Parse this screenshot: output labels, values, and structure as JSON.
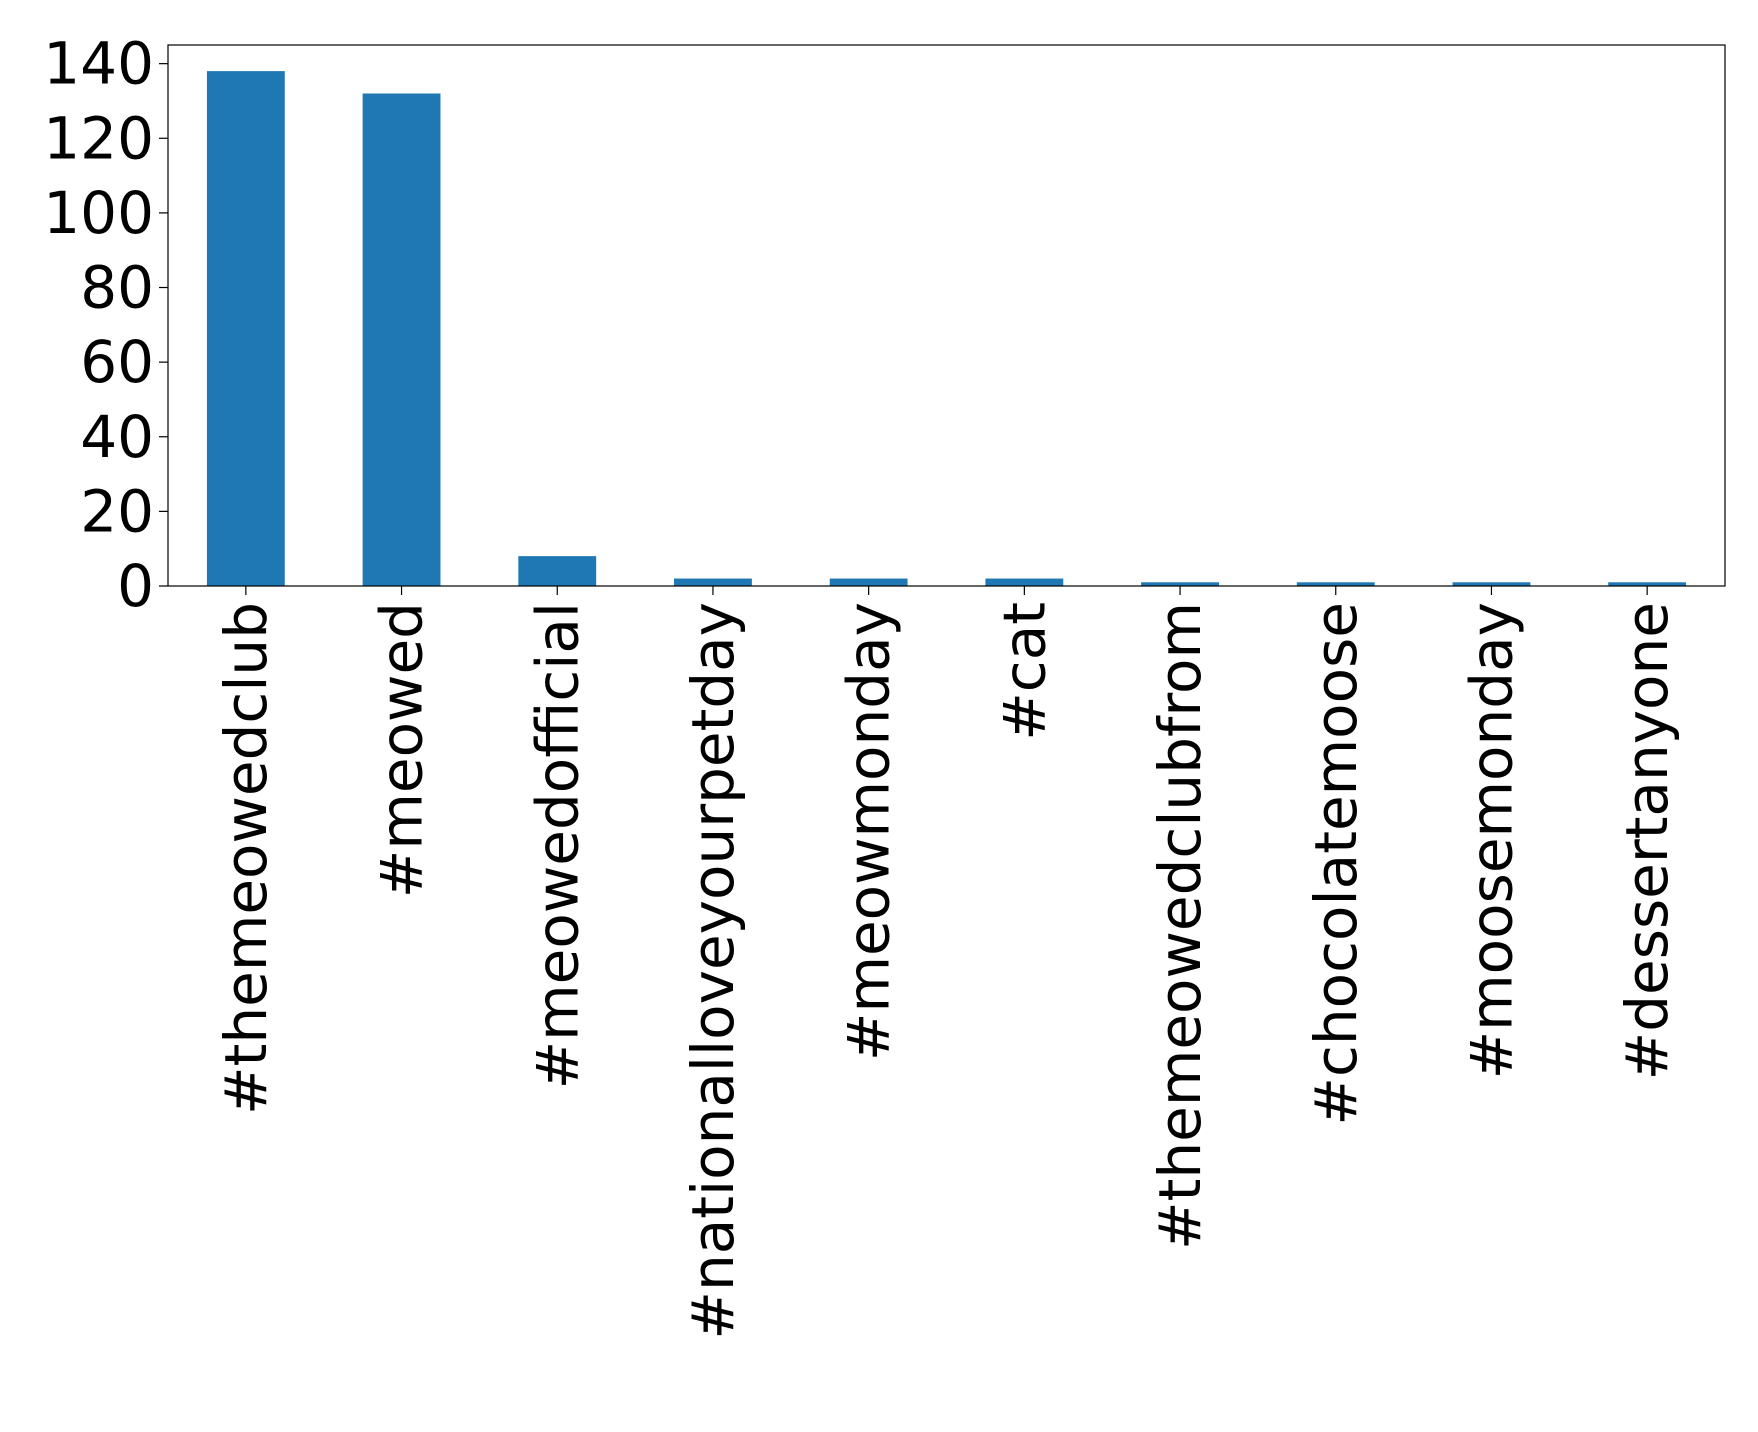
{
  "chart_data": {
    "type": "bar",
    "title": "",
    "xlabel": "",
    "ylabel": "",
    "categories": [
      "#themeowedclub",
      "#meowed",
      "#meowedofficial",
      "#nationalloveyourpetday",
      "#meowmonday",
      "#cat",
      "#themeowedclubfrom",
      "#chocolatemoose",
      "#moosemonday",
      "#dessertanyone"
    ],
    "values": [
      138,
      132,
      8,
      2,
      2,
      2,
      1,
      1,
      1,
      1
    ],
    "ylim": [
      0,
      145
    ],
    "yticks": [
      0,
      20,
      40,
      60,
      80,
      100,
      120,
      140
    ],
    "grid": false,
    "legend": false,
    "colors": {
      "bar": "#1f77b4"
    }
  }
}
